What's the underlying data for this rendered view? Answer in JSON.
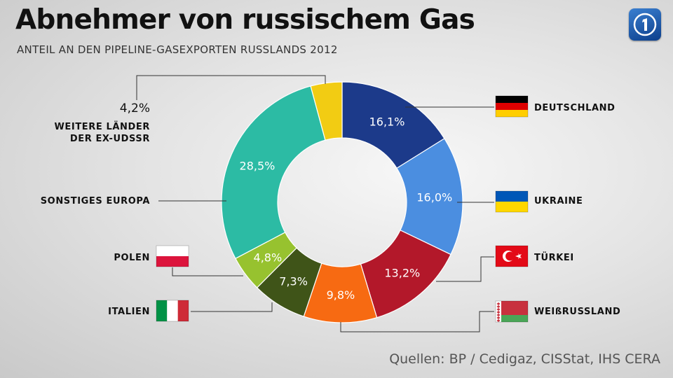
{
  "title": "Abnehmer von russischem Gas",
  "subtitle": "ANTEIL AN DEN PIPELINE-GASEXPORTEN RUSSLANDS 2012",
  "source": {
    "label": "Quellen:",
    "items": [
      "BP /",
      "Cedigaz,",
      "CISStat,",
      "IHS CERA"
    ]
  },
  "chart_data": {
    "type": "pie",
    "donut": true,
    "title": "Abnehmer von russischem Gas",
    "subtitle": "ANTEIL AN DEN PIPELINE-GASEXPORTEN RUSSLANDS 2012",
    "unit": "%",
    "slices": [
      {
        "key": "deutschland",
        "label": "DEUTSCHLAND",
        "value": 16.1,
        "display": "16,1%",
        "color": "#1c3a8a",
        "flag": "germany"
      },
      {
        "key": "ukraine",
        "label": "UKRAINE",
        "value": 16.0,
        "display": "16,0%",
        "color": "#4b8ee0",
        "flag": "ukraine"
      },
      {
        "key": "tuerkei",
        "label": "TÜRKEI",
        "value": 13.2,
        "display": "13,2%",
        "color": "#b3182a",
        "flag": "turkey"
      },
      {
        "key": "weissrussland",
        "label": "WEIßRUSSLAND",
        "value": 9.8,
        "display": "9,8%",
        "color": "#f76a12",
        "flag": "belarus"
      },
      {
        "key": "italien",
        "label": "ITALIEN",
        "value": 7.3,
        "display": "7,3%",
        "color": "#3f5418",
        "flag": "italy"
      },
      {
        "key": "polen",
        "label": "POLEN",
        "value": 4.8,
        "display": "4,8%",
        "color": "#97c22f",
        "flag": "poland"
      },
      {
        "key": "sonstiges",
        "label": "SONSTIGES EUROPA",
        "value": 28.5,
        "display": "28,5%",
        "color": "#2cbba4",
        "flag": null
      },
      {
        "key": "exudssr",
        "label": "WEITERE LÄNDER DER EX-UDSSR",
        "label_lines": [
          "WEITERE LÄNDER",
          "DER EX-UDSSR"
        ],
        "value": 4.2,
        "display": "4,2%",
        "color": "#f2cc13",
        "flag": null
      }
    ]
  }
}
